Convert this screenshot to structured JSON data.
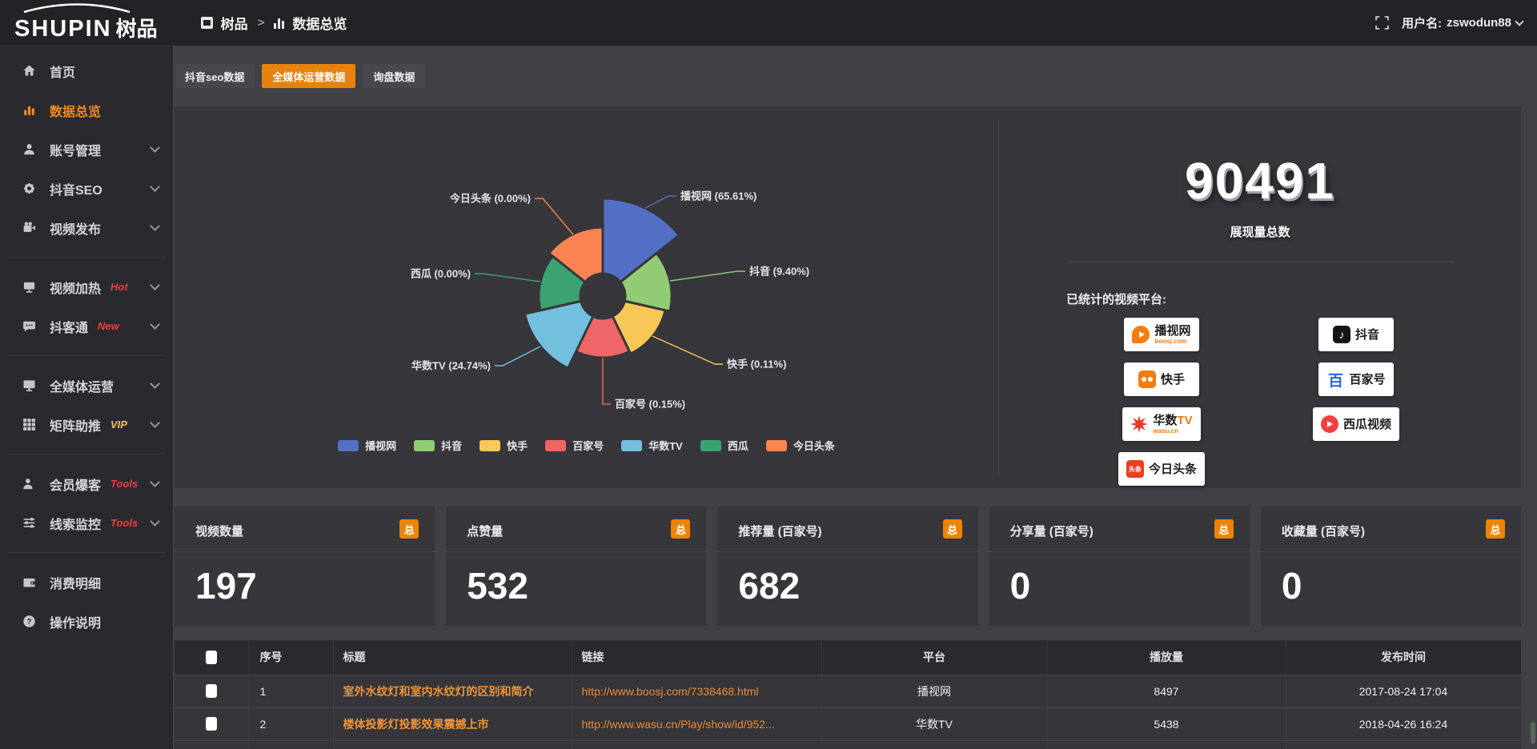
{
  "header": {
    "logo_latin": "SHUPIN",
    "logo_cn": "树品",
    "breadcrumb_root": "树品",
    "breadcrumb_sep": ">",
    "breadcrumb_current": "数据总览",
    "username_label": "用户名:",
    "username": "zswodun88"
  },
  "colors": {
    "accent_orange": "#e8820e",
    "badge_orange": "#ef8201",
    "sidebar_active": "#f08a1e",
    "tag_red": "#f23c3c",
    "tag_yellow": "#f5c23c",
    "table_title_orange": "#ee9438",
    "table_link_orange": "#ef8a35"
  },
  "sidebar": {
    "items": [
      {
        "label": "首页",
        "icon": "home",
        "active": false,
        "chevron": false,
        "divider_after": false
      },
      {
        "label": "数据总览",
        "icon": "chart",
        "active": true,
        "chevron": false,
        "divider_after": false
      },
      {
        "label": "账号管理",
        "icon": "user",
        "active": false,
        "chevron": true,
        "divider_after": false
      },
      {
        "label": "抖音SEO",
        "icon": "gear",
        "active": false,
        "chevron": true,
        "divider_after": false
      },
      {
        "label": "视频发布",
        "icon": "video",
        "active": false,
        "chevron": true,
        "divider_after": true
      },
      {
        "label": "视频加热",
        "icon": "board",
        "tag": "Hot",
        "tag_color": "#f23c3c",
        "active": false,
        "chevron": true,
        "divider_after": false
      },
      {
        "label": "抖客通",
        "icon": "chat",
        "tag": "New",
        "tag_color": "#f23c3c",
        "active": false,
        "chevron": true,
        "divider_after": true
      },
      {
        "label": "全媒体运营",
        "icon": "monitor",
        "active": false,
        "chevron": true,
        "divider_after": false
      },
      {
        "label": "矩阵助推",
        "icon": "grid",
        "tag": "VIP",
        "tag_color": "#f5c23c",
        "active": false,
        "chevron": true,
        "divider_after": true
      },
      {
        "label": "会员爆客",
        "icon": "userplus",
        "tag": "Tools",
        "tag_color": "#f23c3c",
        "active": false,
        "chevron": true,
        "divider_after": false
      },
      {
        "label": "线索监控",
        "icon": "sliders",
        "tag": "Tools",
        "tag_color": "#f23c3c",
        "active": false,
        "chevron": true,
        "divider_after": true
      },
      {
        "label": "消费明细",
        "icon": "wallet",
        "active": false,
        "chevron": false,
        "divider_after": false
      },
      {
        "label": "操作说明",
        "icon": "help",
        "active": false,
        "chevron": false,
        "divider_after": false
      }
    ]
  },
  "tabs": [
    {
      "label": "抖音seo数据",
      "active": false
    },
    {
      "label": "全媒体运营数据",
      "active": true
    },
    {
      "label": "询盘数据",
      "active": false
    }
  ],
  "chart_data": {
    "type": "pie",
    "subtype": "nightingale-rose",
    "title": "",
    "label_format": "{name} ({pct})",
    "legend_position": "bottom",
    "items": [
      {
        "name": "播视网",
        "pct_label": "65.61%",
        "value_pct": 65.61,
        "color": "#5470c6"
      },
      {
        "name": "抖音",
        "pct_label": "9.40%",
        "value_pct": 9.4,
        "color": "#91cc75"
      },
      {
        "name": "快手",
        "pct_label": "0.11%",
        "value_pct": 0.11,
        "color": "#fac858"
      },
      {
        "name": "百家号",
        "pct_label": "0.15%",
        "value_pct": 0.15,
        "color": "#ee6666"
      },
      {
        "name": "华数TV",
        "pct_label": "24.74%",
        "value_pct": 24.74,
        "color": "#73c0de"
      },
      {
        "name": "西瓜",
        "pct_label": "0.00%",
        "value_pct": 0.0,
        "color": "#3ba272"
      },
      {
        "name": "今日头条",
        "pct_label": "0.00%",
        "value_pct": 0.0,
        "color": "#fc8452"
      }
    ],
    "legend": [
      "播视网",
      "抖音",
      "快手",
      "百家号",
      "华数TV",
      "西瓜",
      "今日头条"
    ]
  },
  "overview": {
    "total_value": "90491",
    "total_label": "展现量总数",
    "platforms_label": "已统计的视频平台:",
    "platform_columns": [
      [
        {
          "name": "播视网",
          "sub": "boosj.com",
          "icon": "boosj"
        },
        {
          "name": "快手",
          "icon": "kuaishou"
        },
        {
          "name": "华数TV",
          "sub": "wasu.cn",
          "icon": "wasu"
        },
        {
          "name": "今日头条",
          "icon": "toutiao"
        }
      ],
      [
        {
          "name": "抖音",
          "icon": "douyin"
        },
        {
          "name": "百家号",
          "icon": "baijiahao"
        },
        {
          "name": "西瓜视频",
          "icon": "xigua"
        }
      ]
    ]
  },
  "stat_cards": [
    {
      "title": "视频数量",
      "badge": "总",
      "value": "197"
    },
    {
      "title": "点赞量",
      "badge": "总",
      "value": "532"
    },
    {
      "title": "推荐量 (百家号)",
      "badge": "总",
      "value": "682"
    },
    {
      "title": "分享量 (百家号)",
      "badge": "总",
      "value": "0"
    },
    {
      "title": "收藏量 (百家号)",
      "badge": "总",
      "value": "0"
    }
  ],
  "table": {
    "columns": [
      "",
      "序号",
      "标题",
      "链接",
      "平台",
      "播放量",
      "发布时间"
    ],
    "rows": [
      {
        "index": "1",
        "title": "室外水纹灯和室内水纹灯的区别和简介",
        "link": "http://www.boosj.com/7338468.html",
        "platform": "播视网",
        "plays": "8497",
        "time": "2017-08-24 17:04"
      },
      {
        "index": "2",
        "title": "楼体投影灯投影效果震撼上市",
        "link": "http://www.wasu.cn/Play/show/id/952...",
        "platform": "华数TV",
        "plays": "5438",
        "time": "2018-04-26 16:24"
      }
    ]
  }
}
